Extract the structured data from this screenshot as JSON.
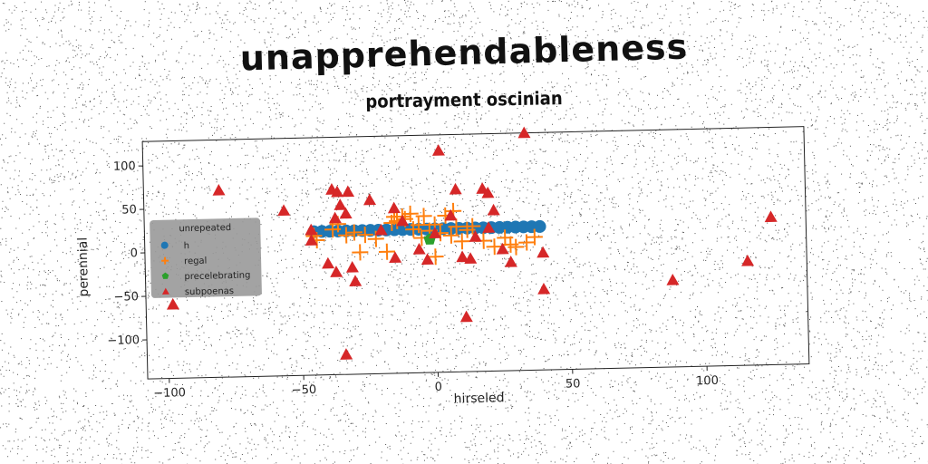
{
  "chart_data": {
    "type": "scatter",
    "title": "unapprehendableness",
    "subtitle": "portrayment oscinian",
    "xlabel": "hirseled",
    "ylabel": "perennial",
    "xlim": [
      -108,
      138
    ],
    "ylim": [
      -145,
      128
    ],
    "xticks": [
      -100,
      -50,
      0,
      50,
      100
    ],
    "yticks": [
      100,
      50,
      0,
      -50,
      -100
    ],
    "grid": false,
    "legend": {
      "title": "unrepeated",
      "placement": "center-left"
    },
    "series": [
      {
        "name": "h",
        "marker": "circle",
        "color": "#1f77b4",
        "points": [
          [
            -45,
            20
          ],
          [
            -42,
            20
          ],
          [
            -39,
            20
          ],
          [
            -36,
            20
          ],
          [
            -33,
            20
          ],
          [
            -30,
            20
          ],
          [
            -27,
            20
          ],
          [
            -24,
            20
          ],
          [
            -21,
            20
          ],
          [
            -18,
            20
          ],
          [
            -15,
            20
          ],
          [
            -12,
            20
          ],
          [
            -9,
            20
          ],
          [
            -6,
            20
          ],
          [
            -3,
            20
          ],
          [
            0,
            20
          ],
          [
            3,
            20
          ],
          [
            6,
            20
          ],
          [
            9,
            20
          ],
          [
            12,
            20
          ],
          [
            15,
            20
          ],
          [
            18,
            20
          ],
          [
            21,
            20
          ],
          [
            24,
            20
          ],
          [
            27,
            20
          ],
          [
            30,
            20
          ],
          [
            33,
            20
          ],
          [
            36,
            20
          ],
          [
            39,
            20
          ]
        ]
      },
      {
        "name": "regal",
        "marker": "plus",
        "color": "#ff7f0e",
        "points": [
          [
            -45,
            15
          ],
          [
            -44,
            10
          ],
          [
            -38,
            22
          ],
          [
            -36,
            28
          ],
          [
            -33,
            15
          ],
          [
            -30,
            18
          ],
          [
            -28,
            -5
          ],
          [
            -26,
            15
          ],
          [
            -22,
            10
          ],
          [
            -18,
            -5
          ],
          [
            -16,
            28
          ],
          [
            -15,
            35
          ],
          [
            -14,
            30
          ],
          [
            -12,
            35
          ],
          [
            -11,
            32
          ],
          [
            -9,
            38
          ],
          [
            -8,
            20
          ],
          [
            -6,
            25
          ],
          [
            -5,
            10
          ],
          [
            -4,
            35
          ],
          [
            -2,
            18
          ],
          [
            0,
            25
          ],
          [
            0,
            -12
          ],
          [
            2,
            15
          ],
          [
            4,
            35
          ],
          [
            6,
            12
          ],
          [
            7,
            40
          ],
          [
            8,
            22
          ],
          [
            10,
            5
          ],
          [
            12,
            18
          ],
          [
            14,
            22
          ],
          [
            18,
            5
          ],
          [
            22,
            -2
          ],
          [
            26,
            8
          ],
          [
            28,
            0
          ],
          [
            30,
            -3
          ],
          [
            34,
            2
          ],
          [
            37,
            8
          ]
        ]
      },
      {
        "name": "precelebrating",
        "marker": "pentagon",
        "color": "#2ca02c",
        "points": [
          [
            -2,
            8
          ]
        ]
      },
      {
        "name": "subpoenas",
        "marker": "triangle",
        "color": "#d62728",
        "points": [
          [
            -98,
            -60
          ],
          [
            -80,
            70
          ],
          [
            -56,
            45
          ],
          [
            -46,
            10
          ],
          [
            -46,
            22
          ],
          [
            -40,
            -17
          ],
          [
            -38,
            68
          ],
          [
            -37,
            35
          ],
          [
            -37,
            -27
          ],
          [
            -36,
            65
          ],
          [
            -35,
            50
          ],
          [
            -34,
            -122
          ],
          [
            -33,
            40
          ],
          [
            -32,
            65
          ],
          [
            -31,
            -22
          ],
          [
            -30,
            -38
          ],
          [
            -24,
            55
          ],
          [
            -20,
            20
          ],
          [
            -15,
            -12
          ],
          [
            -15,
            45
          ],
          [
            -12,
            30
          ],
          [
            -6,
            -3
          ],
          [
            -3,
            -15
          ],
          [
            0,
            15
          ],
          [
            2,
            110
          ],
          [
            6,
            35
          ],
          [
            8,
            65
          ],
          [
            10,
            -13
          ],
          [
            11,
            -82
          ],
          [
            13,
            -15
          ],
          [
            15,
            10
          ],
          [
            18,
            65
          ],
          [
            20,
            60
          ],
          [
            20,
            20
          ],
          [
            22,
            40
          ],
          [
            25,
            -5
          ],
          [
            28,
            -20
          ],
          [
            34,
            128
          ],
          [
            40,
            -10
          ],
          [
            40,
            -52
          ],
          [
            88,
            -45
          ],
          [
            116,
            -25
          ],
          [
            125,
            25
          ]
        ]
      }
    ]
  },
  "colors": {
    "h": "#1f77b4",
    "regal": "#ff7f0e",
    "precelebrating": "#2ca02c",
    "subpoenas": "#d62728",
    "legend_bg": "#999999"
  }
}
